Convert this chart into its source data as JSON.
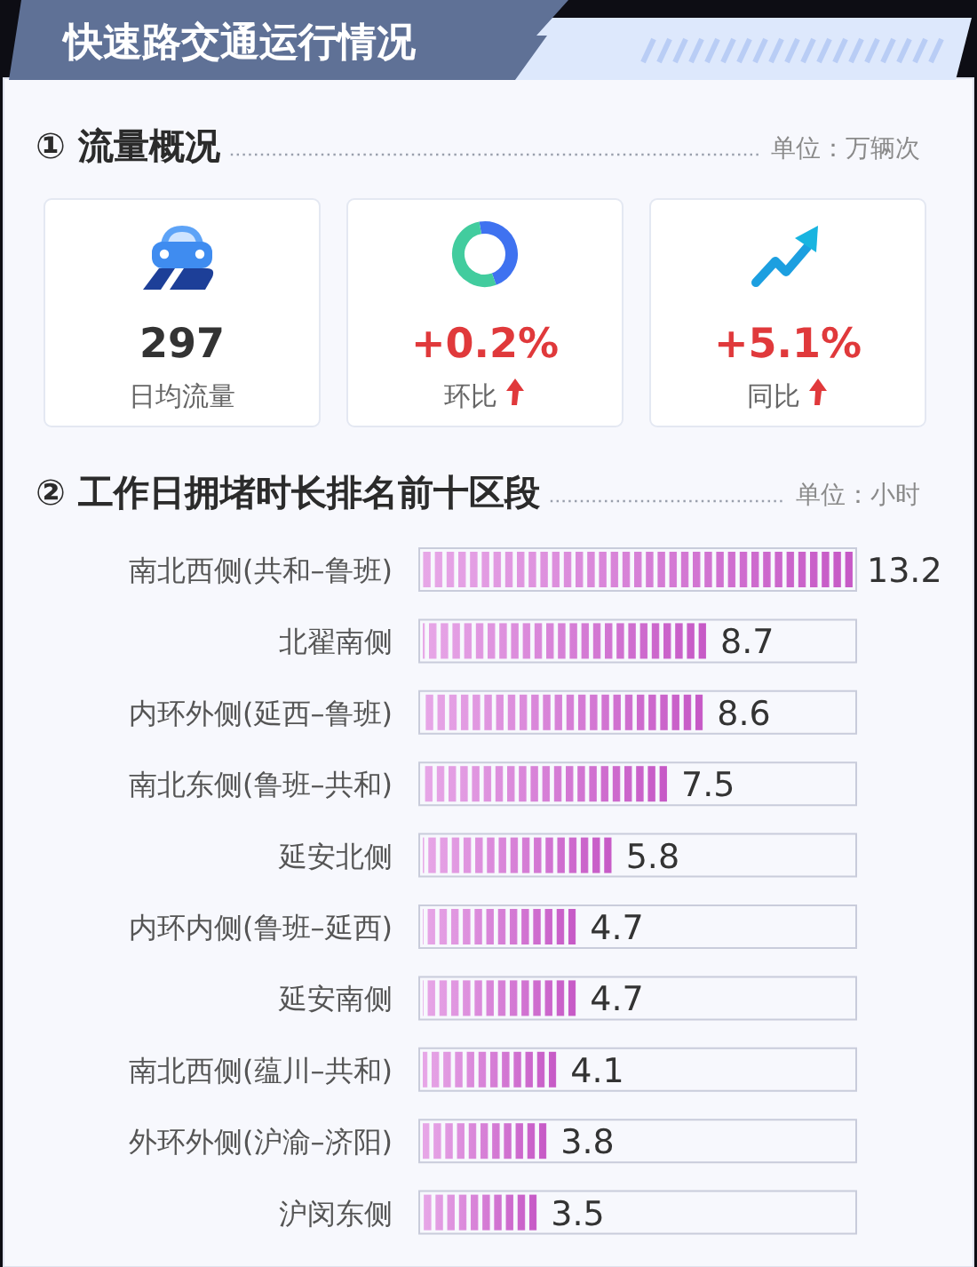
{
  "chart_data": [
    {
      "type": "other",
      "title": "快速路交通运行情况",
      "subtitle": "① 流量概况",
      "annotations": [
        "单位：万辆次",
        "297",
        "日均流量",
        "+0.2%",
        "环比",
        "+5.1%",
        "同比"
      ]
    },
    {
      "type": "bar",
      "orientation": "horizontal",
      "title": "② 工作日拥堵时长排名前十区段",
      "annotations": [
        "单位：小时"
      ],
      "categories": [
        "南北西侧(共和–鲁班)",
        "北翟南侧",
        "内环外侧(延西–鲁班)",
        "南北东侧(鲁班–共和)",
        "延安北侧",
        "内环内侧(鲁班–延西)",
        "延安南侧",
        "南北西侧(蕴川–共和)",
        "外环外侧(沪渝–济阳)",
        "沪闵东侧"
      ],
      "values": [
        13.2,
        8.7,
        8.6,
        7.5,
        5.8,
        4.7,
        4.7,
        4.1,
        3.8,
        3.5
      ],
      "color": "#d35fd3",
      "data_labels": true
    }
  ]
}
